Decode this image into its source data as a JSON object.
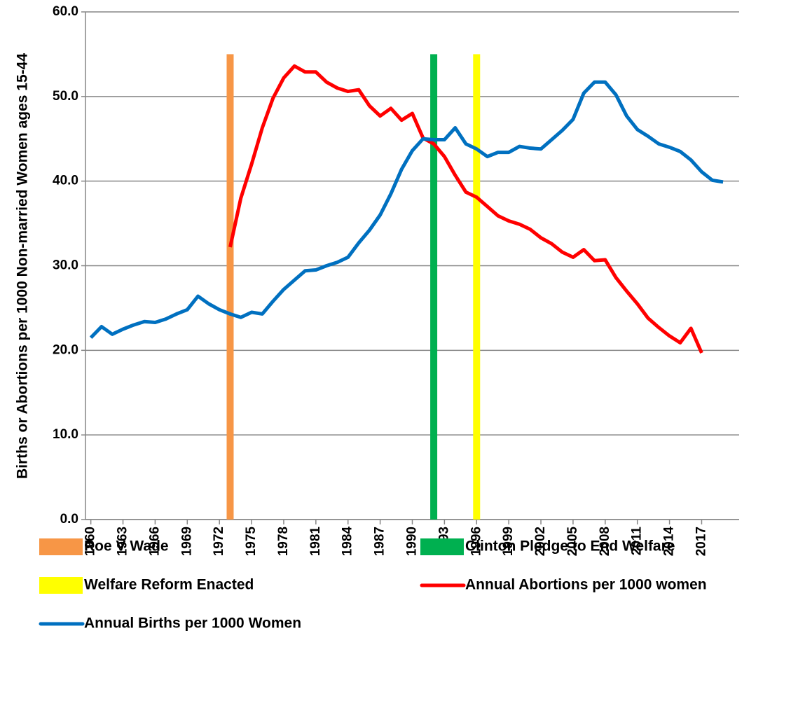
{
  "chart_data": {
    "type": "line",
    "y_label": "Births or Abortions per 1000 Non-married Women ages 15-44",
    "x": [
      1960,
      1961,
      1962,
      1963,
      1964,
      1965,
      1966,
      1967,
      1968,
      1969,
      1970,
      1971,
      1972,
      1973,
      1974,
      1975,
      1976,
      1977,
      1978,
      1979,
      1980,
      1981,
      1982,
      1983,
      1984,
      1985,
      1986,
      1987,
      1988,
      1989,
      1990,
      1991,
      1992,
      1993,
      1994,
      1995,
      1996,
      1997,
      1998,
      1999,
      2000,
      2001,
      2002,
      2003,
      2004,
      2005,
      2006,
      2007,
      2008,
      2009,
      2010,
      2011,
      2012,
      2013,
      2014,
      2015,
      2016,
      2017,
      2018,
      2019
    ],
    "xlim": [
      1959.5,
      2020.5
    ],
    "xticks": [
      1960,
      1963,
      1966,
      1969,
      1972,
      1975,
      1978,
      1981,
      1984,
      1987,
      1990,
      1993,
      1996,
      1999,
      2002,
      2005,
      2008,
      2011,
      2014,
      2017
    ],
    "ylim": [
      0,
      60
    ],
    "yticks": [
      {
        "value": 0,
        "label": "0.0"
      },
      {
        "value": 10,
        "label": "10.0"
      },
      {
        "value": 20,
        "label": "20.0"
      },
      {
        "value": 30,
        "label": "30.0"
      },
      {
        "value": 40,
        "label": "40.0"
      },
      {
        "value": 50,
        "label": "50.0"
      },
      {
        "value": 60,
        "label": "60.0"
      }
    ],
    "grid": true,
    "series": [
      {
        "name": "Roe V Wade",
        "type": "vline",
        "color": "#f79646",
        "x": 1973,
        "value": 55
      },
      {
        "name": "Clinton Pledge to End Welfare",
        "type": "vline",
        "color": "#00b050",
        "x": 1992,
        "value": 55
      },
      {
        "name": "Welfare Reform Enacted",
        "type": "vline",
        "color": "#ffff00",
        "x": 1996,
        "value": 55
      },
      {
        "name": "Annual Abortions per 1000 women",
        "type": "line",
        "color": "#ff0000",
        "values": [
          null,
          null,
          null,
          null,
          null,
          null,
          null,
          null,
          null,
          null,
          null,
          null,
          null,
          32.2,
          38.0,
          42.0,
          46.3,
          49.8,
          52.2,
          53.6,
          52.9,
          52.9,
          51.7,
          51.0,
          50.6,
          50.8,
          48.9,
          47.7,
          48.6,
          47.2,
          48.0,
          45.1,
          44.4,
          42.9,
          40.7,
          38.7,
          38.1,
          37.0,
          35.9,
          35.3,
          34.9,
          34.3,
          33.3,
          32.6,
          31.6,
          31.0,
          31.9,
          30.6,
          30.7,
          28.6,
          27.0,
          25.5,
          23.8,
          22.7,
          21.7,
          20.9,
          22.6,
          19.7,
          null,
          null
        ]
      },
      {
        "name": "Annual Births per 1000 Women",
        "type": "line",
        "color": "#0070c0",
        "values": [
          21.5,
          22.8,
          21.9,
          22.5,
          23.0,
          23.4,
          23.3,
          23.7,
          24.3,
          24.8,
          26.4,
          25.5,
          24.8,
          24.3,
          23.9,
          24.5,
          24.3,
          25.8,
          27.2,
          28.3,
          29.4,
          29.5,
          30.0,
          30.4,
          31.0,
          32.7,
          34.2,
          36.0,
          38.5,
          41.4,
          43.6,
          45.0,
          44.9,
          44.9,
          46.3,
          44.4,
          43.8,
          42.9,
          43.4,
          43.4,
          44.1,
          43.9,
          43.8,
          44.9,
          46.0,
          47.3,
          50.4,
          51.7,
          51.7,
          50.2,
          47.7,
          46.1,
          45.3,
          44.4,
          44.0,
          43.5,
          42.5,
          41.1,
          40.1,
          39.9
        ]
      }
    ]
  }
}
